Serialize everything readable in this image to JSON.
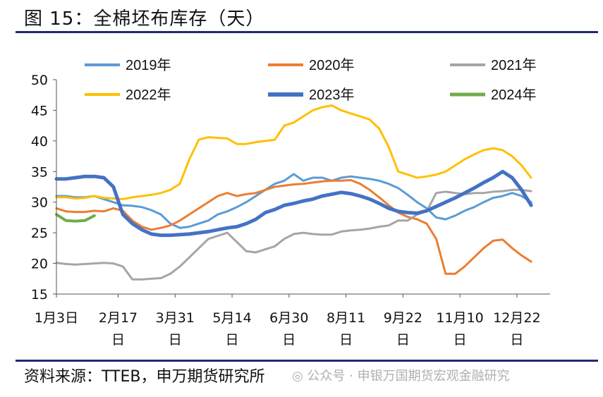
{
  "title": "图 15：全棉坯布库存（天）",
  "source": "资料来源：TTEB，申万期货研究所",
  "watermark": "◎ 公众号 · 申银万国期货宏观金融研究",
  "colors": {
    "rule": "#1f2a6b",
    "s2019": "#5b9bd5",
    "s2020": "#ed7d31",
    "s2021": "#a5a5a5",
    "s2022": "#ffc000",
    "s2023": "#4472c4",
    "s2024": "#70ad47"
  },
  "chart_data": {
    "type": "line",
    "title": "全棉坯布库存（天）",
    "ylim": [
      15,
      50
    ],
    "yticks": [
      15,
      20,
      25,
      30,
      35,
      40,
      45,
      50
    ],
    "xlim": [
      0,
      52
    ],
    "xticks": [
      {
        "pos": 0,
        "line1": "1月3日",
        "line2": ""
      },
      {
        "pos": 6.5,
        "line1": "2月17",
        "line2": "日"
      },
      {
        "pos": 12.5,
        "line1": "3月31",
        "line2": "日"
      },
      {
        "pos": 18.5,
        "line1": "5月14",
        "line2": "日"
      },
      {
        "pos": 24.5,
        "line1": "6月30",
        "line2": "日"
      },
      {
        "pos": 30.5,
        "line1": "8月11",
        "line2": "日"
      },
      {
        "pos": 36.5,
        "line1": "9月22",
        "line2": "日"
      },
      {
        "pos": 42.5,
        "line1": "11月10",
        "line2": "日"
      },
      {
        "pos": 48.5,
        "line1": "12月22",
        "line2": "日"
      }
    ],
    "legend_position": "top",
    "series": [
      {
        "name": "2019年",
        "color": "#5b9bd5",
        "width": 3,
        "values": [
          31.0,
          31.0,
          30.8,
          30.8,
          31.0,
          30.5,
          30.0,
          29.5,
          29.4,
          29.2,
          28.7,
          28.0,
          26.5,
          25.8,
          26.0,
          26.5,
          27.0,
          28.0,
          28.5,
          29.2,
          30.0,
          31.0,
          32.0,
          33.0,
          33.5,
          34.6,
          33.5,
          34.0,
          34.0,
          33.5,
          34.0,
          34.2,
          34.0,
          33.8,
          33.5,
          33.0,
          32.3,
          31.2,
          30.0,
          29.0,
          27.5,
          27.2,
          27.8,
          28.6,
          29.2,
          30.0,
          30.7,
          31.0,
          31.5,
          31.0,
          30.0
        ]
      },
      {
        "name": "2020年",
        "color": "#ed7d31",
        "width": 3,
        "values": [
          29.0,
          28.5,
          28.4,
          28.4,
          28.6,
          28.5,
          29.0,
          28.6,
          27.0,
          26.0,
          25.5,
          25.8,
          26.2,
          27.0,
          28.0,
          29.0,
          30.0,
          31.0,
          31.5,
          31.0,
          31.3,
          31.5,
          32.0,
          32.5,
          32.7,
          32.9,
          33.0,
          33.2,
          33.4,
          33.5,
          33.5,
          33.6,
          33.0,
          32.0,
          30.8,
          29.5,
          28.3,
          27.6,
          27.2,
          26.5,
          24.0,
          18.3,
          18.3,
          19.5,
          21.0,
          22.5,
          23.7,
          23.9,
          22.5,
          21.3,
          20.3
        ]
      },
      {
        "name": "2021年",
        "color": "#a5a5a5",
        "width": 3,
        "values": [
          20.1,
          19.9,
          19.8,
          19.9,
          20.0,
          20.1,
          20.0,
          19.5,
          17.4,
          17.4,
          17.5,
          17.6,
          18.3,
          19.5,
          21.0,
          22.5,
          24.0,
          24.5,
          25.0,
          23.5,
          22.0,
          21.8,
          22.3,
          22.8,
          24.0,
          24.8,
          25.0,
          24.8,
          24.7,
          24.7,
          25.2,
          25.4,
          25.5,
          25.7,
          26.0,
          26.2,
          27.0,
          27.0,
          28.0,
          28.5,
          31.5,
          31.7,
          31.5,
          31.3,
          31.5,
          31.5,
          31.7,
          31.8,
          32.0,
          32.0,
          31.8
        ]
      },
      {
        "name": "2022年",
        "color": "#ffc000",
        "width": 3,
        "values": [
          30.8,
          30.8,
          30.6,
          30.7,
          31.0,
          30.7,
          30.6,
          30.5,
          30.8,
          31.0,
          31.2,
          31.5,
          32.0,
          33.0,
          37.0,
          40.2,
          40.6,
          40.5,
          40.4,
          39.5,
          39.5,
          39.8,
          40.0,
          40.2,
          42.5,
          43.0,
          44.0,
          45.0,
          45.5,
          45.8,
          45.0,
          44.5,
          44.0,
          43.5,
          42.0,
          39.0,
          35.0,
          34.5,
          34.0,
          34.2,
          34.5,
          35.0,
          36.0,
          37.0,
          37.8,
          38.5,
          38.8,
          38.5,
          37.5,
          36.0,
          34.0
        ]
      },
      {
        "name": "2023年",
        "color": "#4472c4",
        "width": 5,
        "values": [
          33.8,
          33.8,
          34.0,
          34.2,
          34.2,
          34.0,
          32.5,
          28.0,
          26.5,
          25.5,
          24.8,
          24.6,
          24.6,
          24.7,
          24.8,
          25.0,
          25.2,
          25.5,
          25.8,
          26.0,
          26.5,
          27.2,
          28.3,
          28.8,
          29.5,
          29.8,
          30.2,
          30.5,
          31.0,
          31.3,
          31.6,
          31.4,
          31.0,
          30.5,
          29.8,
          29.0,
          28.5,
          28.3,
          28.2,
          28.6,
          29.3,
          30.0,
          30.7,
          31.5,
          32.3,
          33.2,
          34.0,
          35.0,
          34.0,
          32.0,
          29.5
        ]
      },
      {
        "name": "2024年",
        "color": "#70ad47",
        "width": 4,
        "values": [
          28.0,
          27.0,
          26.9,
          27.0,
          27.8
        ]
      }
    ]
  }
}
